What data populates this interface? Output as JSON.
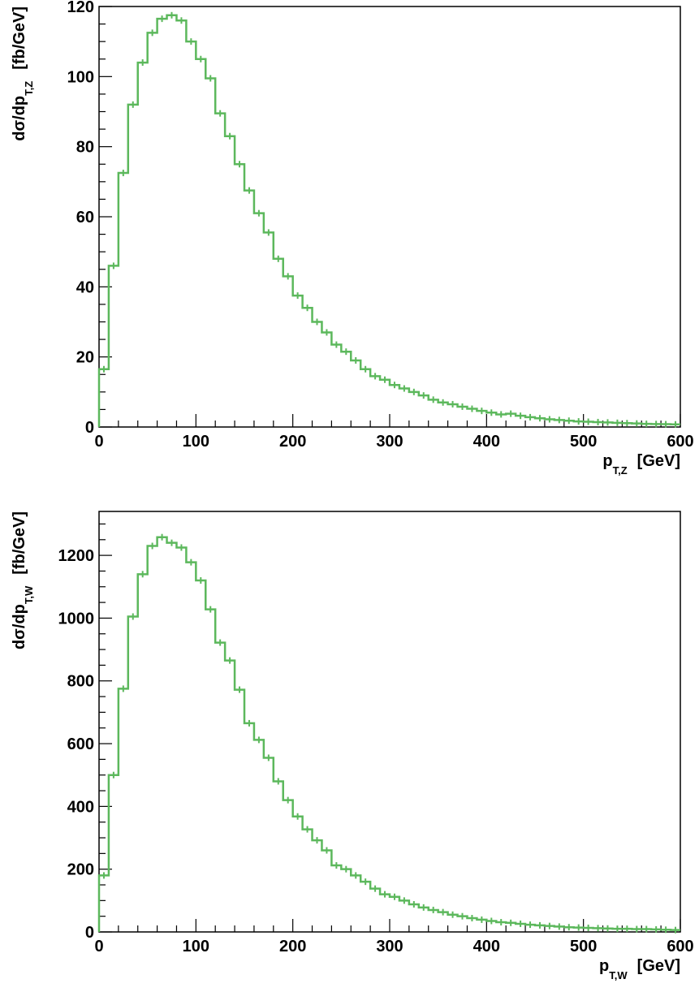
{
  "colors": {
    "histogram": "#5cb85c",
    "axes": "#000000",
    "background": "#ffffff"
  },
  "chart_data": [
    {
      "type": "histogram",
      "x_title": {
        "main": "p",
        "sub": "T,Z",
        "unit": "[GeV]"
      },
      "y_title": {
        "main": "dσ/dp",
        "sub": "T,Z",
        "unit": "[fb/GeV]"
      },
      "xlim": [
        0,
        600
      ],
      "ylim": [
        0,
        120
      ],
      "x_ticks": [
        "0",
        "100",
        "200",
        "300",
        "400",
        "500",
        "600"
      ],
      "y_ticks": [
        "0",
        "20",
        "40",
        "60",
        "80",
        "100",
        "120"
      ],
      "bin_width": 10,
      "values": [
        16.5,
        46,
        72.5,
        92,
        104,
        112.5,
        116.5,
        117.5,
        116,
        110,
        105,
        99.5,
        89.5,
        83,
        75,
        67.5,
        61,
        55.5,
        48,
        43,
        37.5,
        34,
        30,
        27,
        23.5,
        21.5,
        19,
        16.5,
        14.5,
        13.5,
        12,
        11,
        10,
        9,
        7.8,
        7,
        6.5,
        5.8,
        5.2,
        4.6,
        4.1,
        3.6,
        3.8,
        3.2,
        2.8,
        2.5,
        2.2,
        2,
        1.8,
        1.6,
        1.5,
        1.4,
        1.3,
        1.2,
        1.1,
        1.0,
        0.9,
        0.85,
        0.8,
        0.75
      ]
    },
    {
      "type": "histogram",
      "x_title": {
        "main": "p",
        "sub": "T,W",
        "unit": "[GeV]"
      },
      "y_title": {
        "main": "dσ/dp",
        "sub": "T,W",
        "unit": "[fb/GeV]"
      },
      "xlim": [
        0,
        600
      ],
      "ylim": [
        0,
        1340
      ],
      "x_ticks": [
        "0",
        "100",
        "200",
        "300",
        "400",
        "500",
        "600"
      ],
      "y_ticks": [
        "0",
        "200",
        "400",
        "600",
        "800",
        "1000",
        "1200"
      ],
      "bin_width": 10,
      "values": [
        180,
        500,
        775,
        1005,
        1140,
        1230,
        1258,
        1240,
        1225,
        1178,
        1120,
        1028,
        922,
        865,
        772,
        665,
        612,
        555,
        480,
        420,
        368,
        327,
        292,
        260,
        212,
        200,
        180,
        160,
        138,
        120,
        112,
        100,
        88,
        78,
        70,
        63,
        55,
        50,
        44,
        39,
        35,
        31,
        29,
        26,
        23,
        21,
        19,
        17,
        15,
        14,
        13,
        12,
        11,
        10,
        10,
        9,
        9,
        8,
        7,
        6
      ]
    }
  ]
}
